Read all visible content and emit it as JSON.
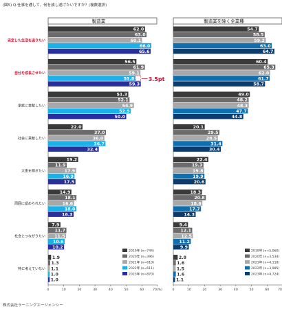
{
  "title": "(図5) Q.仕事を通して、何を成し遂げたいですか？(複数選択)",
  "source": "株式会社ラーニングエージェンシー",
  "chart_data": [
    {
      "type": "bar",
      "orientation": "horizontal",
      "title": "製造業",
      "categories": [
        "安定した生活を送りたい",
        "自分を成長させたい",
        "家族に貢献したい",
        "社会に貢献したい",
        "大金を稼ぎたい",
        "周囲に認められたい",
        "社会とつながりたい",
        "特に考えていない"
      ],
      "series": [
        {
          "name": "2019年 (n=744)",
          "color": "#3a3a3a",
          "values": [
            62.0,
            56.5,
            51.3,
            22.0,
            19.2,
            14.9,
            7.9,
            1.9
          ]
        },
        {
          "name": "2020年 (n=396)",
          "color": "#6b6b6b",
          "values": [
            63.0,
            61.9,
            52.1,
            37.0,
            11.9,
            18.1,
            11.7,
            1.3
          ]
        },
        {
          "name": "2021年 (n=610)",
          "color": "#a8a8a8",
          "values": [
            60.1,
            59.1,
            54.9,
            36.0,
            17.9,
            16.6,
            11.5,
            1.1
          ]
        },
        {
          "name": "2022年 (n=611)",
          "color": "#1ab0e8",
          "values": [
            66.0,
            55.8,
            52.9,
            36.7,
            16.9,
            18.0,
            10.6,
            1.0
          ]
        },
        {
          "name": "2023年 (n=870)",
          "color": "#2a2f9e",
          "values": [
            65.6,
            59.3,
            50.0,
            32.4,
            17.5,
            16.3,
            10.2,
            1.0
          ]
        }
      ],
      "annotation": {
        "category": "自分を成長させたい",
        "text": "3.5pt"
      },
      "xlim": [
        0,
        70
      ],
      "ticks": [
        "0",
        "10",
        "20",
        "30",
        "40",
        "50",
        "60",
        "70(%)"
      ]
    },
    {
      "type": "bar",
      "orientation": "horizontal",
      "title": "製造業を除く全業種",
      "categories": [
        "安定した生活を送りたい",
        "自分を成長させたい",
        "家族に貢献したい",
        "社会に貢献したい",
        "大金を稼ぎたい",
        "周囲に認められたい",
        "社会とつながりたい",
        "特に考えていない"
      ],
      "series": [
        {
          "name": "2019年 (n=5,060)",
          "color": "#3a3a3a",
          "values": [
            54.7,
            60.4,
            49.0,
            20.1,
            22.4,
            18.3,
            9.4,
            2.8
          ]
        },
        {
          "name": "2020年 (n=3,534)",
          "color": "#6b6b6b",
          "values": [
            58.5,
            65.3,
            48.2,
            29.5,
            19.3,
            20.8,
            12.1,
            1.6
          ]
        },
        {
          "name": "2021年 (n=4,118)",
          "color": "#a8a8a8",
          "values": [
            59.2,
            62.0,
            48.3,
            28.5,
            19.8,
            18.6,
            12.5,
            1.5
          ]
        },
        {
          "name": "2022年 (n=3,985)",
          "color": "#0f6fae",
          "values": [
            63.0,
            61.7,
            47.7,
            31.4,
            19.9,
            17.7,
            11.2,
            1.6
          ]
        },
        {
          "name": "2023年 (n=4,724)",
          "color": "#0c3b6e",
          "values": [
            64.7,
            58.7,
            44.8,
            30.4,
            20.6,
            14.3,
            9.9,
            1.1
          ]
        }
      ],
      "xlim": [
        0,
        70
      ],
      "ticks": [
        "0",
        "10",
        "20",
        "30",
        "40",
        "50",
        "60",
        "70(%)"
      ]
    }
  ]
}
